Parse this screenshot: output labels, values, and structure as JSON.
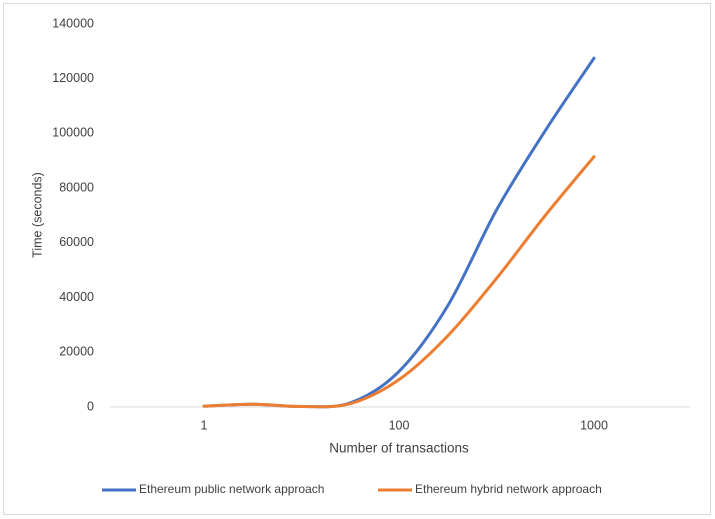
{
  "chart_data": {
    "type": "line",
    "x_label": "Number of transactions",
    "y_label": "Time (seconds)",
    "categories": [
      "1",
      null,
      null,
      null,
      "100",
      null,
      null,
      null,
      "1000"
    ],
    "series": [
      {
        "name": "Ethereum public network approach",
        "color": "#4472c4",
        "values": [
          300,
          1000,
          200,
          1500,
          13000,
          37000,
          72000,
          101000,
          127500
        ]
      },
      {
        "name": "Ethereum hybrid network approach",
        "color": "#ed7d31",
        "values": [
          300,
          1000,
          200,
          1200,
          10000,
          26000,
          47000,
          70000,
          91500
        ]
      }
    ],
    "ylim": [
      0,
      140000
    ],
    "yticks": [
      0,
      20000,
      40000,
      60000,
      80000,
      100000,
      120000,
      140000
    ],
    "smooth": true,
    "legend": "bottom"
  }
}
